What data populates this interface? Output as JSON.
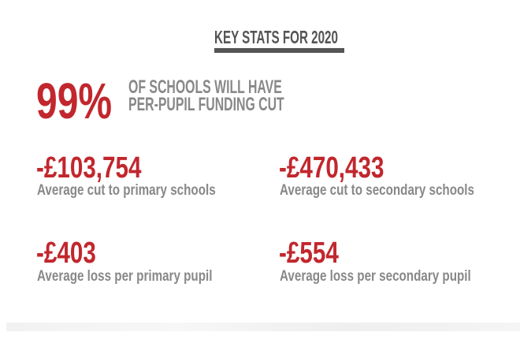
{
  "title": "KEY STATS FOR 2020",
  "headline": {
    "value": "99%",
    "line1": "OF SCHOOLS WILL HAVE",
    "line2": "PER-PUPIL FUNDING CUT"
  },
  "stats": [
    {
      "value": "-£103,754",
      "label": "Average cut to primary schools"
    },
    {
      "value": "-£470,433",
      "label": "Average cut to secondary schools"
    },
    {
      "value": "-£403",
      "label": "Average loss per primary pupil"
    },
    {
      "value": "-£554",
      "label": "Average loss per secondary pupil"
    }
  ],
  "colors": {
    "accent": "#c1272d",
    "text": "#888888",
    "title": "#555555"
  }
}
